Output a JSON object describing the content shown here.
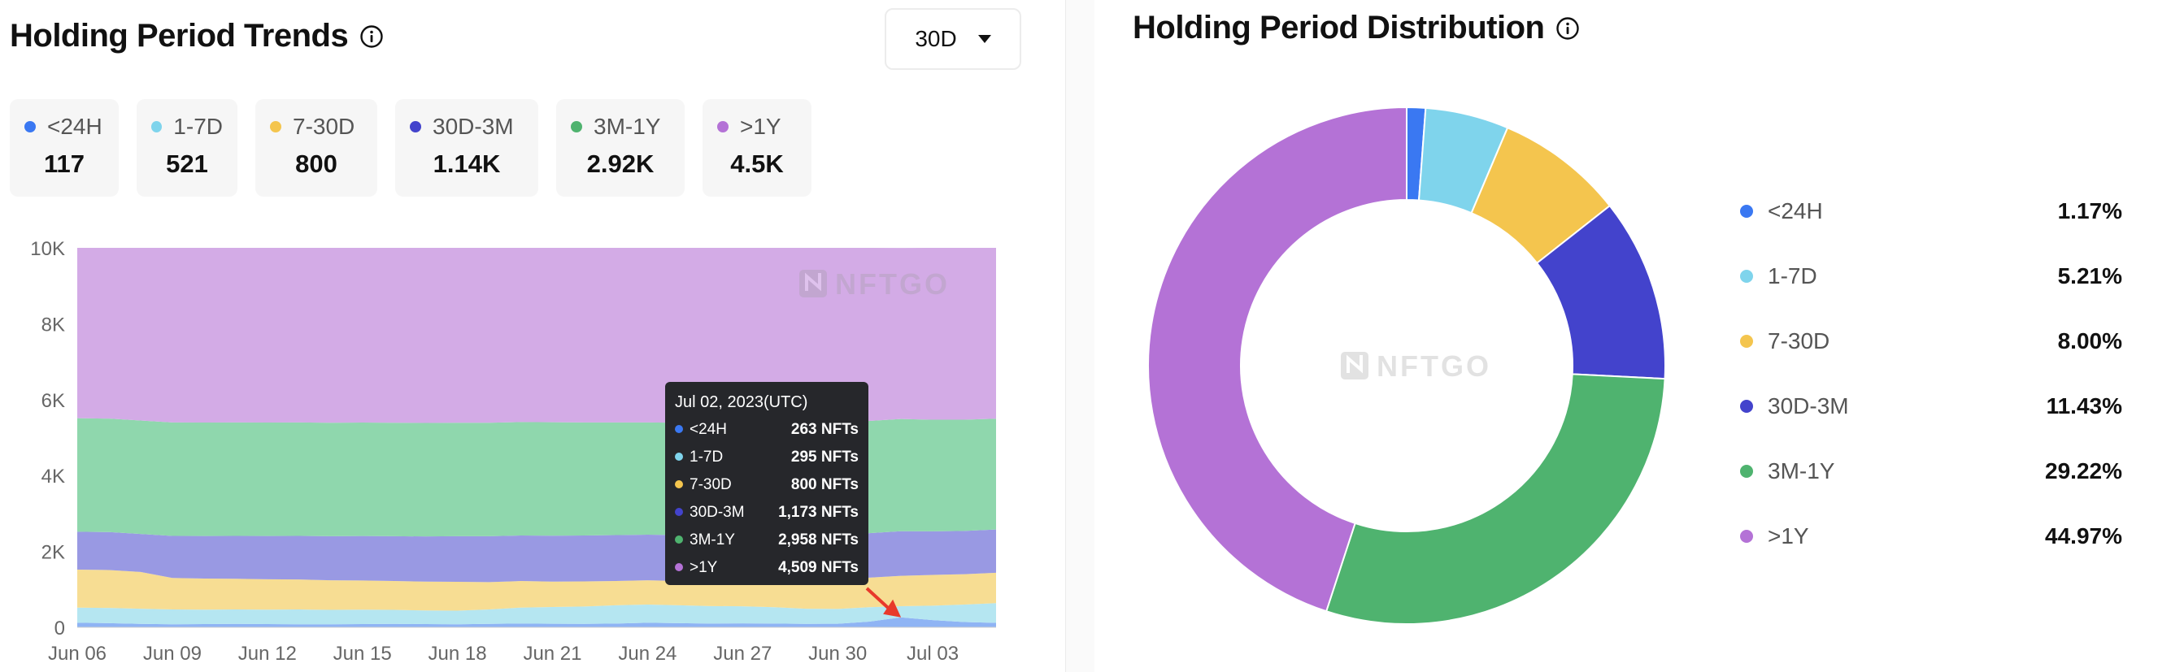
{
  "left": {
    "title": "Holding Period Trends",
    "range": "30D",
    "stats": [
      {
        "label": "<24H",
        "value": "117",
        "color": "#3a78f2"
      },
      {
        "label": "1-7D",
        "value": "521",
        "color": "#7fd4ec"
      },
      {
        "label": "7-30D",
        "value": "800",
        "color": "#f4c54e"
      },
      {
        "label": "30D-3M",
        "value": "1.14K",
        "color": "#4343cc"
      },
      {
        "label": "3M-1Y",
        "value": "2.92K",
        "color": "#4fb36f"
      },
      {
        "label": ">1Y",
        "value": "4.5K",
        "color": "#b472d6"
      }
    ],
    "watermark": "NFTGO"
  },
  "tooltip": {
    "date": "Jul 02, 2023(UTC)",
    "rows": [
      {
        "label": "<24H",
        "value": "263 NFTs",
        "color": "#3a78f2"
      },
      {
        "label": "1-7D",
        "value": "295 NFTs",
        "color": "#7fd4ec"
      },
      {
        "label": "7-30D",
        "value": "800 NFTs",
        "color": "#f4c54e"
      },
      {
        "label": "30D-3M",
        "value": "1,173 NFTs",
        "color": "#4343cc"
      },
      {
        "label": "3M-1Y",
        "value": "2,958 NFTs",
        "color": "#4fb36f"
      },
      {
        "label": ">1Y",
        "value": "4,509 NFTs",
        "color": "#b472d6"
      }
    ]
  },
  "right": {
    "title": "Holding Period Distribution",
    "watermark": "NFTGO"
  },
  "chart_data": [
    {
      "type": "area",
      "title": "Holding Period Trends",
      "stacked": true,
      "x": [
        "Jun 06",
        "Jun 07",
        "Jun 08",
        "Jun 09",
        "Jun 10",
        "Jun 11",
        "Jun 12",
        "Jun 13",
        "Jun 14",
        "Jun 15",
        "Jun 16",
        "Jun 17",
        "Jun 18",
        "Jun 19",
        "Jun 20",
        "Jun 21",
        "Jun 22",
        "Jun 23",
        "Jun 24",
        "Jun 25",
        "Jun 26",
        "Jun 27",
        "Jun 28",
        "Jun 29",
        "Jun 30",
        "Jul 01",
        "Jul 02",
        "Jul 03",
        "Jul 04",
        "Jul 05"
      ],
      "x_tick_labels": [
        "Jun 06",
        "Jun 09",
        "Jun 12",
        "Jun 15",
        "Jun 18",
        "Jun 21",
        "Jun 24",
        "Jun 27",
        "Jun 30",
        "Jul 03"
      ],
      "ylim": [
        0,
        10000
      ],
      "y_ticks": [
        0,
        2000,
        4000,
        6000,
        8000,
        10000
      ],
      "y_tick_labels": [
        "0",
        "2K",
        "4K",
        "6K",
        "8K",
        "10K"
      ],
      "series": [
        {
          "name": "<24H",
          "color": "#8fb4f4",
          "values": [
            120,
            110,
            90,
            80,
            85,
            90,
            85,
            80,
            80,
            85,
            90,
            85,
            80,
            90,
            100,
            95,
            90,
            100,
            120,
            110,
            100,
            105,
            100,
            90,
            95,
            150,
            263,
            190,
            140,
            117
          ]
        },
        {
          "name": "1-7D",
          "color": "#b5e6f1",
          "values": [
            400,
            400,
            400,
            390,
            380,
            380,
            380,
            390,
            380,
            380,
            370,
            360,
            360,
            380,
            420,
            440,
            460,
            480,
            480,
            470,
            460,
            450,
            430,
            400,
            390,
            380,
            295,
            380,
            460,
            521
          ]
        },
        {
          "name": "7-30D",
          "color": "#f7dd93",
          "values": [
            1000,
            1000,
            970,
            830,
            820,
            810,
            800,
            790,
            780,
            770,
            760,
            760,
            760,
            720,
            700,
            670,
            660,
            640,
            640,
            640,
            660,
            680,
            700,
            730,
            760,
            780,
            800,
            810,
            800,
            800
          ]
        },
        {
          "name": "30D-3M",
          "color": "#9999e3",
          "values": [
            1000,
            1000,
            1000,
            1110,
            1120,
            1130,
            1140,
            1150,
            1160,
            1170,
            1180,
            1190,
            1200,
            1210,
            1200,
            1210,
            1210,
            1210,
            1200,
            1210,
            1210,
            1200,
            1190,
            1180,
            1170,
            1170,
            1173,
            1150,
            1140,
            1140
          ]
        },
        {
          "name": "3M-1Y",
          "color": "#8fd7ad",
          "values": [
            2990,
            2990,
            2990,
            2990,
            2990,
            2990,
            2990,
            2990,
            2990,
            2990,
            2990,
            2990,
            2990,
            2990,
            2990,
            2990,
            2980,
            2970,
            2960,
            2960,
            2960,
            2960,
            2960,
            2960,
            2960,
            2960,
            2958,
            2940,
            2930,
            2920
          ]
        },
        {
          "name": ">1Y",
          "color": "#d3abe6",
          "values": [
            4490,
            4500,
            4550,
            4600,
            4605,
            4600,
            4605,
            4600,
            4610,
            4605,
            4610,
            4615,
            4610,
            4610,
            4590,
            4595,
            4600,
            4600,
            4600,
            4610,
            4610,
            4605,
            4620,
            4640,
            4625,
            4560,
            4509,
            4530,
            4530,
            4502
          ]
        }
      ]
    },
    {
      "type": "pie",
      "title": "Holding Period Distribution",
      "donut": true,
      "slices": [
        {
          "label": "<24H",
          "value": 1.17,
          "display": "1.17%",
          "color": "#3a78f2"
        },
        {
          "label": "1-7D",
          "value": 5.21,
          "display": "5.21%",
          "color": "#7fd4ec"
        },
        {
          "label": "7-30D",
          "value": 8.0,
          "display": "8.00%",
          "color": "#f4c54e"
        },
        {
          "label": "30D-3M",
          "value": 11.43,
          "display": "11.43%",
          "color": "#4343cc"
        },
        {
          "label": "3M-1Y",
          "value": 29.22,
          "display": "29.22%",
          "color": "#4fb36f"
        },
        {
          "label": ">1Y",
          "value": 44.97,
          "display": "44.97%",
          "color": "#b472d6"
        }
      ]
    }
  ]
}
